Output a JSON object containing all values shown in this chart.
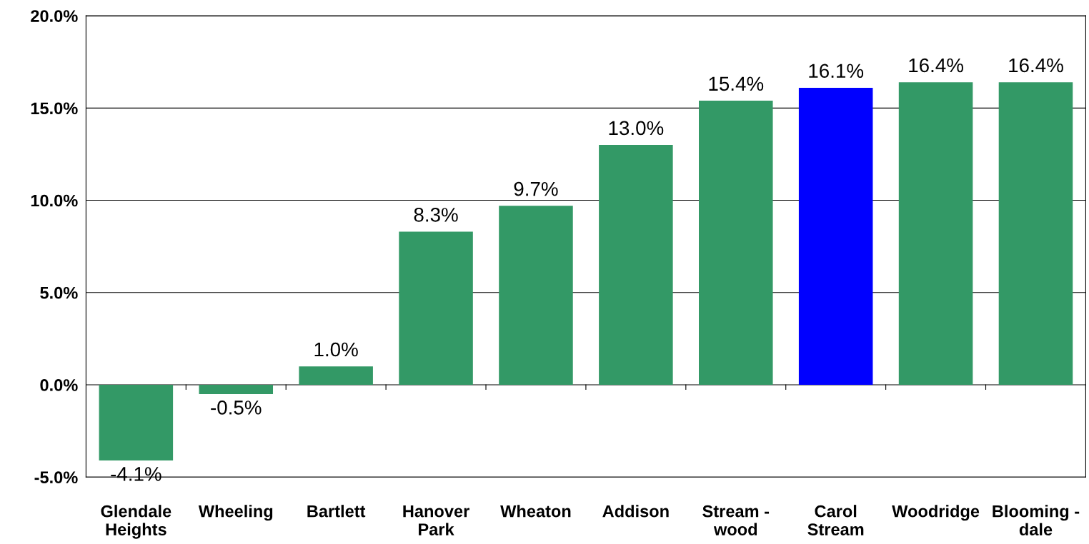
{
  "chart_data": {
    "type": "bar",
    "categories": [
      "Glendale\nHeights",
      "Wheeling",
      "Bartlett",
      "Hanover\nPark",
      "Wheaton",
      "Addison",
      "Stream -\nwood",
      "Carol\nStream",
      "Woodridge",
      "Blooming -\ndale"
    ],
    "values": [
      -4.1,
      -0.5,
      1.0,
      8.3,
      9.7,
      13.0,
      15.4,
      16.1,
      16.4,
      16.4
    ],
    "value_labels": [
      "-4.1%",
      "-0.5%",
      "1.0%",
      "8.3%",
      "9.7%",
      "13.0%",
      "15.4%",
      "16.1%",
      "16.4%",
      "16.4%"
    ],
    "colors": [
      "#339966",
      "#339966",
      "#339966",
      "#339966",
      "#339966",
      "#339966",
      "#339966",
      "#0000ff",
      "#339966",
      "#339966"
    ],
    "ylim": [
      -5,
      20
    ],
    "yticks": [
      {
        "value": -5,
        "label": "-5.0%"
      },
      {
        "value": 0,
        "label": "0.0%"
      },
      {
        "value": 5,
        "label": "5.0%"
      },
      {
        "value": 10,
        "label": "10.0%"
      },
      {
        "value": 15,
        "label": "15.0%"
      },
      {
        "value": 20,
        "label": "20.0%"
      }
    ],
    "grid": "y"
  }
}
